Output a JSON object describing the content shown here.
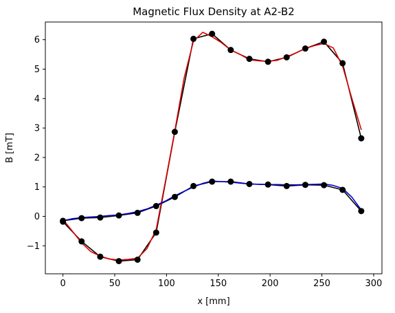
{
  "chart_data": {
    "type": "line",
    "title": "Magnetic Flux Density at A2-B2",
    "xlabel": "x [mm]",
    "ylabel": "B [mT]",
    "xlim": [
      -17,
      308
    ],
    "ylim": [
      -1.95,
      6.6
    ],
    "xticks": [
      0,
      50,
      100,
      150,
      200,
      250,
      300
    ],
    "yticks": [
      -1,
      0,
      1,
      2,
      3,
      4,
      5,
      6
    ],
    "grid": false,
    "legend": "none",
    "series": [
      {
        "color": "#000000",
        "style": "line-markers",
        "x": [
          0,
          18,
          36,
          54,
          72,
          90,
          108,
          126,
          144,
          162,
          180,
          198,
          216,
          234,
          252,
          270,
          288
        ],
        "y": [
          -0.18,
          -0.85,
          -1.37,
          -1.52,
          -1.47,
          -0.55,
          2.87,
          6.03,
          6.2,
          5.65,
          5.35,
          5.25,
          5.4,
          5.7,
          5.93,
          5.2,
          2.65
        ]
      },
      {
        "color": "#000000",
        "style": "line-markers",
        "x": [
          0,
          18,
          36,
          54,
          72,
          90,
          108,
          126,
          144,
          162,
          180,
          198,
          216,
          234,
          252,
          270,
          288
        ],
        "y": [
          -0.15,
          -0.06,
          -0.04,
          0.03,
          0.12,
          0.35,
          0.66,
          1.03,
          1.18,
          1.18,
          1.1,
          1.08,
          1.03,
          1.07,
          1.06,
          0.9,
          0.18
        ]
      },
      {
        "color": "#dd0000",
        "style": "line",
        "x": [
          0,
          9,
          18,
          27,
          36,
          45,
          54,
          63,
          72,
          81,
          90,
          99,
          108,
          117,
          126,
          135,
          144,
          153,
          162,
          171,
          180,
          189,
          198,
          207,
          216,
          225,
          234,
          243,
          252,
          261,
          270,
          279,
          288
        ],
        "y": [
          -0.1,
          -0.5,
          -0.9,
          -1.2,
          -1.35,
          -1.45,
          -1.48,
          -1.46,
          -1.42,
          -1.1,
          -0.45,
          1.2,
          2.9,
          4.7,
          5.95,
          6.25,
          6.1,
          5.9,
          5.65,
          5.5,
          5.32,
          5.28,
          5.27,
          5.3,
          5.42,
          5.55,
          5.7,
          5.8,
          5.87,
          5.72,
          5.1,
          4.0,
          2.95
        ]
      },
      {
        "color": "#0000cc",
        "style": "line",
        "x": [
          0,
          9,
          18,
          27,
          36,
          45,
          54,
          63,
          72,
          81,
          90,
          99,
          108,
          117,
          126,
          135,
          144,
          153,
          162,
          171,
          180,
          189,
          198,
          207,
          216,
          225,
          234,
          243,
          252,
          261,
          270,
          279,
          288
        ],
        "y": [
          -0.15,
          -0.08,
          -0.04,
          -0.02,
          0.0,
          0.03,
          0.05,
          0.1,
          0.16,
          0.25,
          0.38,
          0.52,
          0.7,
          0.85,
          1.0,
          1.12,
          1.2,
          1.18,
          1.16,
          1.13,
          1.1,
          1.09,
          1.08,
          1.08,
          1.07,
          1.07,
          1.08,
          1.09,
          1.1,
          1.05,
          0.95,
          0.65,
          0.22
        ]
      }
    ]
  }
}
